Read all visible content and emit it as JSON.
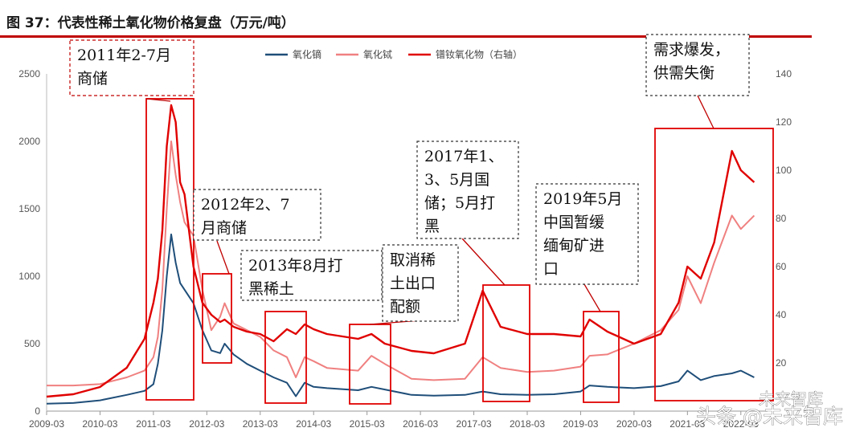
{
  "chart_data": {
    "type": "line",
    "title": "图 37：代表性稀土氧化物价格复盘（万元/吨）",
    "x_ticks": [
      "2009-03",
      "2010-03",
      "2011-03",
      "2012-03",
      "2013-03",
      "2014-03",
      "2015-03",
      "2016-03",
      "2017-03",
      "2018-03",
      "2019-03",
      "2020-03",
      "2021-03",
      "2022-03"
    ],
    "ylim_left": [
      0,
      2500
    ],
    "yticks_left": [
      0,
      500,
      1000,
      1500,
      2000,
      2500
    ],
    "ylim_right": [
      0,
      140
    ],
    "yticks_right": [
      20,
      40,
      60,
      80,
      100,
      120,
      140
    ],
    "legend": {
      "placement": "top-center"
    },
    "series": [
      {
        "name": "氧化镝",
        "axis": "left",
        "color": "#1f4e79",
        "points": [
          [
            "2009-03",
            55
          ],
          [
            "2009-09",
            60
          ],
          [
            "2010-03",
            80
          ],
          [
            "2010-09",
            120
          ],
          [
            "2011-01",
            150
          ],
          [
            "2011-03",
            200
          ],
          [
            "2011-04",
            350
          ],
          [
            "2011-05",
            600
          ],
          [
            "2011-06",
            1000
          ],
          [
            "2011-07",
            1310
          ],
          [
            "2011-08",
            1100
          ],
          [
            "2011-09",
            950
          ],
          [
            "2011-10",
            900
          ],
          [
            "2011-12",
            800
          ],
          [
            "2012-02",
            600
          ],
          [
            "2012-04",
            450
          ],
          [
            "2012-06",
            430
          ],
          [
            "2012-07",
            500
          ],
          [
            "2012-09",
            420
          ],
          [
            "2012-12",
            350
          ],
          [
            "2013-03",
            300
          ],
          [
            "2013-06",
            250
          ],
          [
            "2013-09",
            210
          ],
          [
            "2013-11",
            110
          ],
          [
            "2014-01",
            210
          ],
          [
            "2014-03",
            180
          ],
          [
            "2014-06",
            170
          ],
          [
            "2015-01",
            155
          ],
          [
            "2015-04",
            180
          ],
          [
            "2015-07",
            160
          ],
          [
            "2016-01",
            120
          ],
          [
            "2016-06",
            115
          ],
          [
            "2017-01",
            120
          ],
          [
            "2017-05",
            145
          ],
          [
            "2017-09",
            125
          ],
          [
            "2018-03",
            120
          ],
          [
            "2018-09",
            125
          ],
          [
            "2019-03",
            145
          ],
          [
            "2019-05",
            190
          ],
          [
            "2019-09",
            180
          ],
          [
            "2020-03",
            170
          ],
          [
            "2020-09",
            185
          ],
          [
            "2021-01",
            220
          ],
          [
            "2021-03",
            300
          ],
          [
            "2021-06",
            230
          ],
          [
            "2021-09",
            260
          ],
          [
            "2022-01",
            280
          ],
          [
            "2022-03",
            300
          ],
          [
            "2022-06",
            250
          ]
        ]
      },
      {
        "name": "氧化铽",
        "axis": "left",
        "color": "#f08080",
        "points": [
          [
            "2009-03",
            190
          ],
          [
            "2009-09",
            190
          ],
          [
            "2010-03",
            200
          ],
          [
            "2010-09",
            250
          ],
          [
            "2011-01",
            300
          ],
          [
            "2011-03",
            400
          ],
          [
            "2011-04",
            550
          ],
          [
            "2011-05",
            900
          ],
          [
            "2011-06",
            1500
          ],
          [
            "2011-07",
            2000
          ],
          [
            "2011-08",
            1750
          ],
          [
            "2011-09",
            1550
          ],
          [
            "2011-10",
            1400
          ],
          [
            "2011-12",
            1300
          ],
          [
            "2012-02",
            900
          ],
          [
            "2012-04",
            600
          ],
          [
            "2012-06",
            700
          ],
          [
            "2012-07",
            800
          ],
          [
            "2012-09",
            650
          ],
          [
            "2012-12",
            600
          ],
          [
            "2013-03",
            550
          ],
          [
            "2013-06",
            450
          ],
          [
            "2013-09",
            400
          ],
          [
            "2013-11",
            250
          ],
          [
            "2014-01",
            400
          ],
          [
            "2014-03",
            370
          ],
          [
            "2014-06",
            320
          ],
          [
            "2015-01",
            300
          ],
          [
            "2015-04",
            410
          ],
          [
            "2015-07",
            350
          ],
          [
            "2016-01",
            240
          ],
          [
            "2016-06",
            230
          ],
          [
            "2017-01",
            240
          ],
          [
            "2017-05",
            400
          ],
          [
            "2017-09",
            320
          ],
          [
            "2018-03",
            290
          ],
          [
            "2018-09",
            300
          ],
          [
            "2019-03",
            330
          ],
          [
            "2019-05",
            410
          ],
          [
            "2019-09",
            420
          ],
          [
            "2020-03",
            500
          ],
          [
            "2020-09",
            600
          ],
          [
            "2021-01",
            750
          ],
          [
            "2021-03",
            1000
          ],
          [
            "2021-06",
            800
          ],
          [
            "2021-09",
            1100
          ],
          [
            "2022-01",
            1450
          ],
          [
            "2022-03",
            1350
          ],
          [
            "2022-06",
            1450
          ]
        ]
      },
      {
        "name": "镨钕氧化物（右轴）",
        "axis": "right",
        "color": "#e00000",
        "points": [
          [
            "2009-03",
            6
          ],
          [
            "2009-09",
            7
          ],
          [
            "2010-03",
            10
          ],
          [
            "2010-09",
            18
          ],
          [
            "2011-01",
            30
          ],
          [
            "2011-03",
            45
          ],
          [
            "2011-04",
            55
          ],
          [
            "2011-05",
            75
          ],
          [
            "2011-06",
            110
          ],
          [
            "2011-07",
            127
          ],
          [
            "2011-08",
            120
          ],
          [
            "2011-09",
            95
          ],
          [
            "2011-10",
            90
          ],
          [
            "2011-12",
            60
          ],
          [
            "2012-02",
            45
          ],
          [
            "2012-04",
            40
          ],
          [
            "2012-06",
            37
          ],
          [
            "2012-07",
            38
          ],
          [
            "2012-09",
            35
          ],
          [
            "2012-12",
            33
          ],
          [
            "2013-03",
            32
          ],
          [
            "2013-06",
            29
          ],
          [
            "2013-09",
            34
          ],
          [
            "2013-11",
            32
          ],
          [
            "2014-01",
            36
          ],
          [
            "2014-03",
            34
          ],
          [
            "2014-06",
            32
          ],
          [
            "2015-01",
            30
          ],
          [
            "2015-04",
            32
          ],
          [
            "2015-07",
            28
          ],
          [
            "2016-01",
            25
          ],
          [
            "2016-06",
            24
          ],
          [
            "2017-01",
            28
          ],
          [
            "2017-05",
            50
          ],
          [
            "2017-09",
            35
          ],
          [
            "2018-03",
            32
          ],
          [
            "2018-09",
            32
          ],
          [
            "2019-03",
            31
          ],
          [
            "2019-05",
            38
          ],
          [
            "2019-09",
            33
          ],
          [
            "2020-03",
            28
          ],
          [
            "2020-09",
            32
          ],
          [
            "2021-01",
            45
          ],
          [
            "2021-03",
            60
          ],
          [
            "2021-06",
            55
          ],
          [
            "2021-09",
            70
          ],
          [
            "2022-01",
            108
          ],
          [
            "2022-03",
            100
          ],
          [
            "2022-06",
            95
          ]
        ]
      }
    ],
    "annotations": [
      {
        "label": "2011年2-7月\n商储"
      },
      {
        "label": "2012年2、7\n月商储"
      },
      {
        "label": "2013年8月打\n黑稀土"
      },
      {
        "label": "取消稀\n土出口\n配额"
      },
      {
        "label": "2017年1、\n3、5月国\n储；5月打\n黑"
      },
      {
        "label": "2019年5月\n中国暂缓\n缅甸矿进\n口"
      },
      {
        "label": "需求爆发，\n供需失衡"
      }
    ]
  },
  "watermark": {
    "line1": "未来智库",
    "line2": "头条 @未来智库"
  }
}
